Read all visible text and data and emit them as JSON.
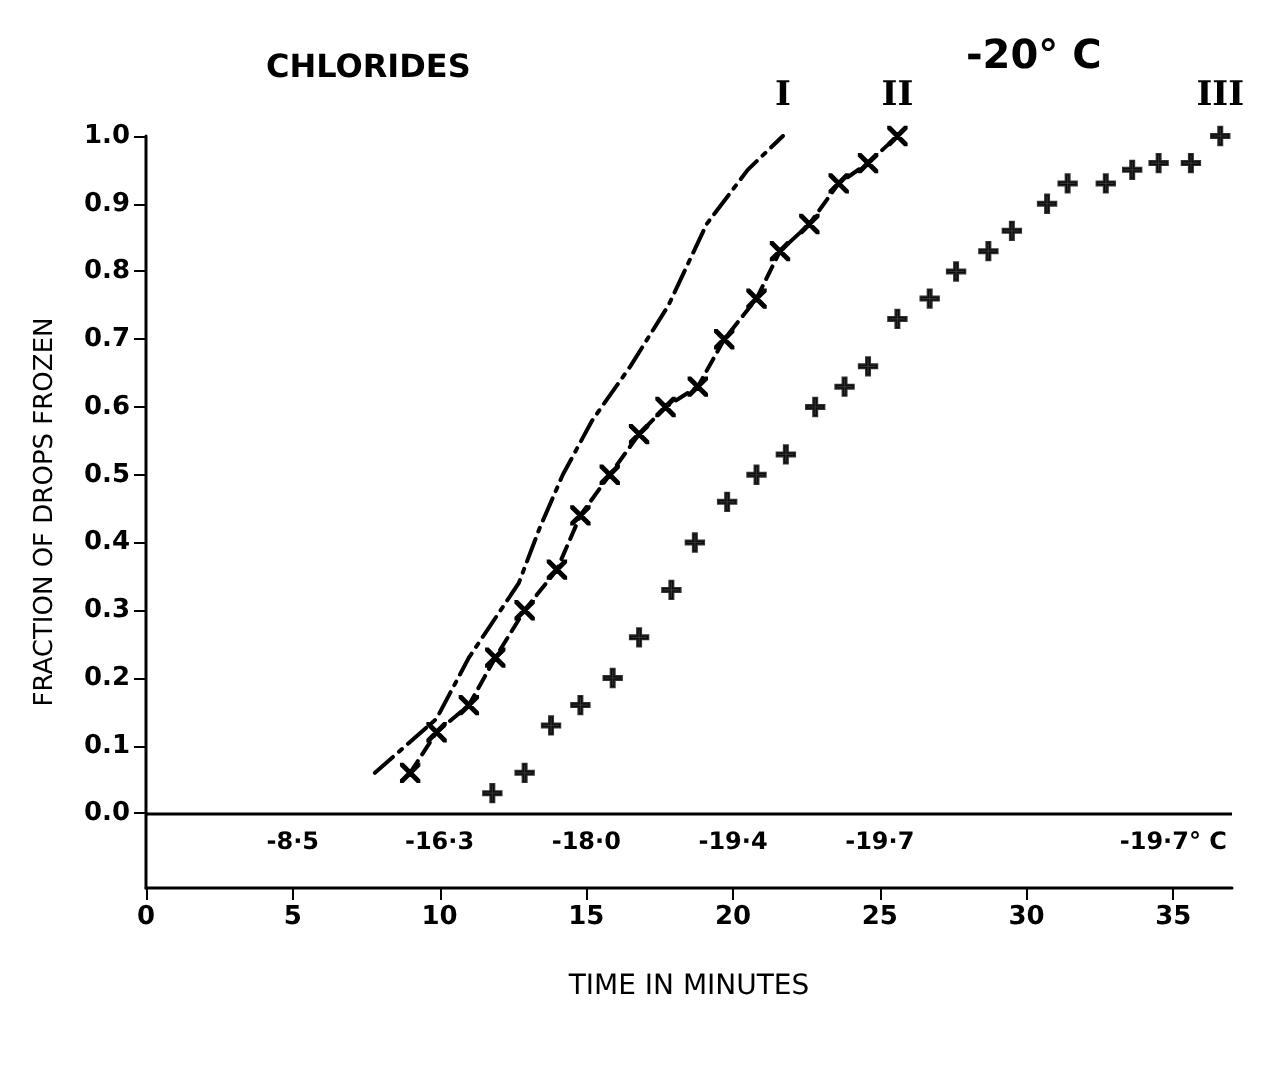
{
  "chart_data": {
    "type": "line",
    "title": "CHLORIDES",
    "xlabel": "TIME IN MINUTES",
    "ylabel": "FRACTION OF DROPS FROZEN",
    "annotations": [
      "-20° C",
      {
        "text": "I",
        "x": 21.7,
        "y": 1.0
      },
      {
        "text": "II",
        "x": 25.6,
        "y": 1.0
      },
      {
        "text": "III",
        "x": 36.6,
        "y": 1.0
      },
      {
        "text": "-8·5",
        "x": 5,
        "y": 0
      },
      {
        "text": "-16·3",
        "x": 10,
        "y": 0
      },
      {
        "text": "-18·0",
        "x": 15,
        "y": 0
      },
      {
        "text": "-19·4",
        "x": 20,
        "y": 0
      },
      {
        "text": "-19·7",
        "x": 25,
        "y": 0
      },
      {
        "text": "-19·7° C",
        "x": 35,
        "y": 0
      }
    ],
    "series": [
      {
        "color": "#000000",
        "line_style": "dashdot",
        "marker": "none",
        "x": [
          7.8,
          9.9,
          11,
          12.7,
          13.4,
          14.2,
          15.2,
          16.5,
          17.8,
          19.1,
          20.5,
          21.7
        ],
        "values": [
          0.06,
          0.14,
          0.23,
          0.34,
          0.42,
          0.5,
          0.58,
          0.66,
          0.75,
          0.87,
          0.95,
          1.0
        ]
      },
      {
        "color": "#000000",
        "line_style": "dashed",
        "marker": "cross",
        "x": [
          9,
          9.9,
          11,
          11.9,
          12.9,
          14,
          14.8,
          15.8,
          16.8,
          17.7,
          18.8,
          19.7,
          20.8,
          21.6,
          22.6,
          23.6,
          24.6,
          25.6
        ],
        "values": [
          0.06,
          0.12,
          0.16,
          0.23,
          0.3,
          0.36,
          0.44,
          0.5,
          0.56,
          0.6,
          0.63,
          0.7,
          0.76,
          0.83,
          0.87,
          0.93,
          0.96,
          1.0
        ]
      },
      {
        "type": "scatter",
        "color": "#000000",
        "marker": "plus",
        "x": [
          11.8,
          12.9,
          13.8,
          14.8,
          15.9,
          16.8,
          17.9,
          18.7,
          19.8,
          20.8,
          21.8,
          22.8,
          23.8,
          24.6,
          25.6,
          26.7,
          27.6,
          28.7,
          29.5,
          30.7,
          31.4,
          32.7,
          33.6,
          34.5,
          35.6,
          36.6
        ],
        "values": [
          0.03,
          0.06,
          0.13,
          0.16,
          0.2,
          0.26,
          0.33,
          0.4,
          0.46,
          0.5,
          0.53,
          0.6,
          0.63,
          0.66,
          0.73,
          0.76,
          0.8,
          0.83,
          0.86,
          0.9,
          0.93,
          0.93,
          0.95,
          0.96,
          0.96,
          1.0
        ]
      }
    ],
    "ref_lines": [
      {
        "axis": "y",
        "value": 0,
        "color": "#000000"
      }
    ],
    "xlim": [
      0,
      37
    ],
    "xticks": [
      0,
      5,
      10,
      15,
      20,
      25,
      30,
      35
    ],
    "ylim": [
      -0.11,
      1.0
    ],
    "yticks": [
      {
        "value": 0,
        "label": "0.0"
      },
      0.1,
      0.2,
      0.3,
      0.4,
      0.5,
      0.6,
      0.7,
      0.8,
      0.9,
      {
        "value": 1.0,
        "label": "1.0"
      }
    ],
    "grid": false
  }
}
